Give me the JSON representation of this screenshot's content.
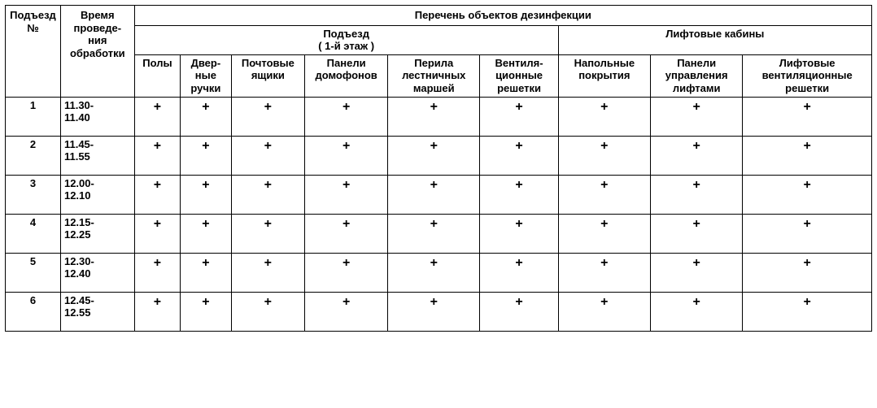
{
  "colors": {
    "border": "#000000",
    "background": "#ffffff",
    "text": "#000000"
  },
  "fonts": {
    "base_size": 13,
    "check_size": 16,
    "family": "Arial"
  },
  "headers": {
    "entrance_no": "Подъезд №",
    "treatment_time": "Время проведе-ния обработки",
    "object_list": "Перечень объектов  дезинфекции",
    "entrance_section": "Подъезд\n( 1-й этаж )",
    "lift_section": "Лифтовые кабины",
    "cols": {
      "floors": "Полы",
      "door_handles": "Двер-ные ручки",
      "mailboxes": "Почтовые ящики",
      "intercom_panels": "Панели домофонов",
      "stair_railings": "Перила лестничных маршей",
      "vent_grids": "Вентиля-ционные решетки",
      "lift_floor": "Напольные покрытия",
      "lift_panels": "Панели управления лифтами",
      "lift_vent": "Лифтовые вентиляционные решетки"
    }
  },
  "check_mark": "+",
  "rows": [
    {
      "no": "1",
      "time": "11.30-11.40",
      "checks": [
        true,
        true,
        true,
        true,
        true,
        true,
        true,
        true,
        true
      ]
    },
    {
      "no": "2",
      "time": "11.45-11.55",
      "checks": [
        true,
        true,
        true,
        true,
        true,
        true,
        true,
        true,
        true
      ]
    },
    {
      "no": "3",
      "time": "12.00-12.10",
      "checks": [
        true,
        true,
        true,
        true,
        true,
        true,
        true,
        true,
        true
      ]
    },
    {
      "no": "4",
      "time": "12.15-12.25",
      "checks": [
        true,
        true,
        true,
        true,
        true,
        true,
        true,
        true,
        true
      ]
    },
    {
      "no": "5",
      "time": "12.30-12.40",
      "checks": [
        true,
        true,
        true,
        true,
        true,
        true,
        true,
        true,
        true
      ]
    },
    {
      "no": "6",
      "time": "12.45-12.55",
      "checks": [
        true,
        true,
        true,
        true,
        true,
        true,
        true,
        true,
        true
      ]
    }
  ]
}
